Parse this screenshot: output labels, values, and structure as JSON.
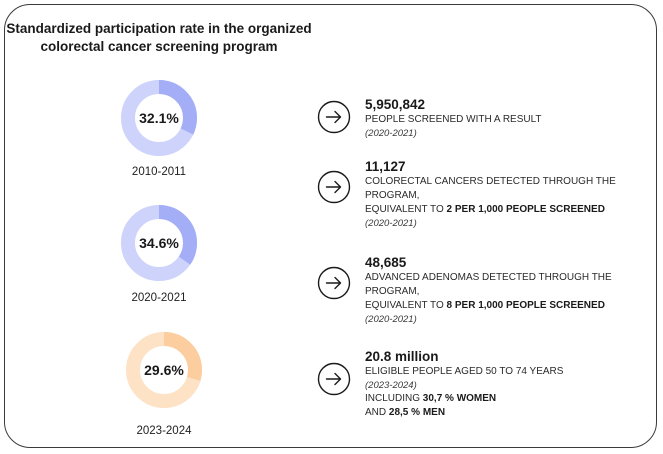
{
  "title_line1": "Standardized participation rate in the organized",
  "title_line2": "colorectal cancer screening program",
  "chart_data": {
    "type": "pie",
    "title": "Standardized participation rate in the organized colorectal cancer screening program",
    "unit": "%",
    "series": [
      {
        "period": "2010-2011",
        "value": 32.1,
        "label": "32.1%",
        "color_fill": "#a3aef7",
        "color_track": "#cdd3fb"
      },
      {
        "period": "2020-2021",
        "value": 34.6,
        "label": "34.6%",
        "color_fill": "#a3aef7",
        "color_track": "#cdd3fb"
      },
      {
        "period": "2023-2024",
        "value": 29.6,
        "label": "29.6%",
        "color_fill": "#fbcd9f",
        "color_track": "#fde2c6"
      }
    ]
  },
  "stats": [
    {
      "value": "5,950,842",
      "line1": "PEOPLE SCREENED WITH A RESULT",
      "period": "(2020-2021)"
    },
    {
      "value": "11,127",
      "line1": "COLORECTAL CANCERS DETECTED THROUGH THE",
      "line2": "PROGRAM,",
      "line3_prefix": "EQUIVALENT TO ",
      "line3_bold": "2 PER 1,000 PEOPLE SCREENED",
      "period": "(2020-2021)"
    },
    {
      "value": "48,685",
      "line1": "ADVANCED ADENOMAS DETECTED THROUGH THE",
      "line2": "PROGRAM,",
      "line3_prefix": "EQUIVALENT TO ",
      "line3_bold": "8 PER 1,000 PEOPLE SCREENED",
      "period": "(2020-2021)"
    },
    {
      "value": "20.8 million",
      "line1": "ELIGIBLE PEOPLE AGED 50 TO 74 YEARS",
      "period": "(2023-2024)",
      "line3_prefix": "INCLUDING ",
      "line3_bold": "30,7 % WOMEN",
      "line4_prefix": "AND ",
      "line4_bold": "28,5 % MEN"
    }
  ]
}
